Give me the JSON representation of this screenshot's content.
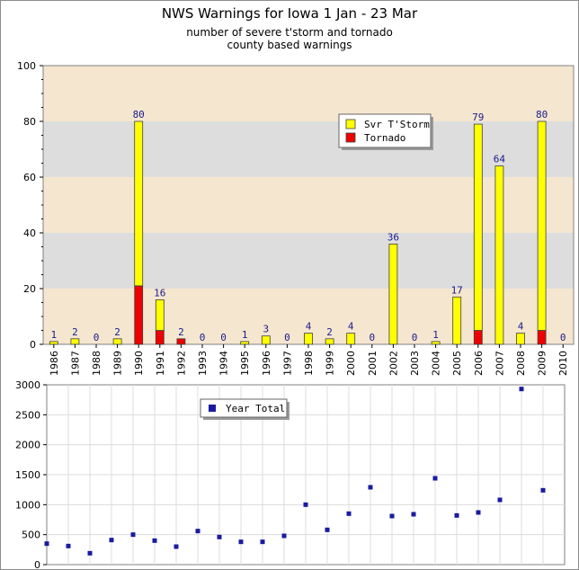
{
  "header": {
    "title": "NWS Warnings for Iowa 1 Jan - 23 Mar",
    "subtitle_line1": "number of severe t'storm and tornado",
    "subtitle_line2": "county based warnings"
  },
  "colors": {
    "svr": "#ffff00",
    "tornado": "#ee0000",
    "total": "#1a1aa0",
    "band_light": "#f5e6cf",
    "band_dark": "#dddddd",
    "label": "#1a1a8c"
  },
  "chart_data": [
    {
      "type": "bar",
      "stacked": true,
      "categories": [
        "1986",
        "1987",
        "1988",
        "1989",
        "1990",
        "1991",
        "1992",
        "1993",
        "1994",
        "1995",
        "1996",
        "1997",
        "1998",
        "1999",
        "2000",
        "2001",
        "2002",
        "2003",
        "2004",
        "2005",
        "2006",
        "2007",
        "2008",
        "2009",
        "2010"
      ],
      "series": [
        {
          "name": "Svr T'Storm",
          "color": "#ffff00",
          "values": [
            1,
            2,
            0,
            2,
            59,
            11,
            0,
            0,
            0,
            1,
            3,
            0,
            4,
            2,
            4,
            0,
            36,
            0,
            1,
            17,
            74,
            64,
            4,
            75,
            0
          ]
        },
        {
          "name": "Tornado",
          "color": "#ee0000",
          "values": [
            0,
            0,
            0,
            0,
            21,
            5,
            2,
            0,
            0,
            0,
            0,
            0,
            0,
            0,
            0,
            0,
            0,
            0,
            0,
            0,
            5,
            0,
            0,
            5,
            0
          ]
        }
      ],
      "totals": [
        1,
        2,
        0,
        2,
        80,
        16,
        2,
        0,
        0,
        1,
        3,
        0,
        4,
        2,
        4,
        0,
        36,
        0,
        1,
        17,
        79,
        64,
        4,
        80,
        0
      ],
      "ylim": [
        0,
        100
      ],
      "yticks": [
        0,
        20,
        40,
        60,
        80,
        100
      ],
      "legend_position": "top-right"
    },
    {
      "type": "scatter",
      "categories": [
        "1986",
        "1987",
        "1988",
        "1989",
        "1990",
        "1991",
        "1992",
        "1993",
        "1994",
        "1995",
        "1996",
        "1997",
        "1998",
        "1999",
        "2000",
        "2001",
        "2002",
        "2003",
        "2004",
        "2005",
        "2006",
        "2007",
        "2008",
        "2009"
      ],
      "series": [
        {
          "name": "Year Total",
          "color": "#1a1aa0",
          "values": [
            350,
            310,
            190,
            410,
            500,
            400,
            300,
            560,
            460,
            380,
            380,
            480,
            1000,
            580,
            850,
            1290,
            810,
            840,
            1440,
            820,
            870,
            1080,
            2930,
            1240
          ]
        }
      ],
      "ylim": [
        0,
        3000
      ],
      "yticks": [
        0,
        500,
        1000,
        1500,
        2000,
        2500,
        3000
      ],
      "grid": true,
      "legend_position": "top-left"
    }
  ]
}
